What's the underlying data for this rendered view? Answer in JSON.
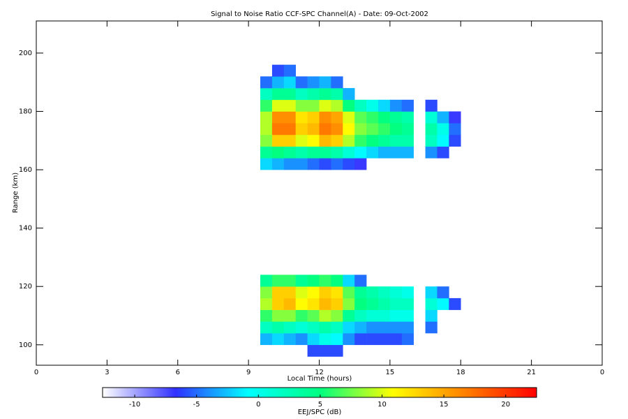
{
  "chart_data": {
    "type": "heatmap",
    "title": "Signal to Noise Ratio CCF-SPC Channel(A) - Date: 09-Oct-2002",
    "x_label": "Local Time (hours)",
    "y_label": "Range (km)",
    "colorbar_label": "EEJ/SPC (dB)",
    "xlim": [
      0,
      24
    ],
    "xticks": [
      0,
      3,
      6,
      9,
      12,
      15,
      18,
      21,
      {
        "value": 24,
        "label": "0"
      }
    ],
    "ylim": [
      93,
      211
    ],
    "yticks": [
      100,
      120,
      140,
      160,
      180,
      200
    ],
    "clim": [
      -12.6,
      22.5
    ],
    "cticks": [
      -10,
      -5,
      0,
      5,
      10,
      15,
      20
    ],
    "colormap": [
      "#ffffff",
      "#3030ff",
      "#00ffff",
      "#00ff80",
      "#ffff00",
      "#ff8000",
      "#ff0000"
    ],
    "x": [
      9.5,
      10,
      10.5,
      11,
      11.5,
      12,
      12.5,
      13,
      13.5,
      14,
      14.5,
      15,
      15.5,
      16,
      16.5,
      17,
      17.5,
      18
    ],
    "y": [
      96,
      100,
      104,
      108,
      112,
      116,
      120,
      124,
      128,
      132,
      136,
      140,
      144,
      148,
      152,
      156,
      160,
      164,
      168,
      172,
      176,
      180,
      184,
      188,
      192,
      196,
      200
    ],
    "z": [
      [
        null,
        null,
        null,
        null,
        -6,
        -6,
        -6,
        null,
        null,
        null,
        null,
        null,
        null,
        null,
        null,
        null,
        null
      ],
      [
        -3,
        -2,
        -3,
        -4,
        -2,
        0,
        -1,
        -4,
        -6,
        -6,
        -6,
        -6,
        -5,
        null,
        null,
        null,
        null
      ],
      [
        2,
        3,
        2,
        1,
        2,
        3,
        2,
        -2,
        -3,
        -4,
        -4,
        -4,
        -4,
        null,
        -5,
        null,
        null
      ],
      [
        6,
        8,
        8,
        6,
        7,
        9,
        8,
        4,
        2,
        1,
        1,
        0,
        0,
        null,
        -2,
        null,
        null
      ],
      [
        9,
        13,
        14,
        11,
        12,
        14,
        13,
        8,
        5,
        4,
        3,
        2,
        2,
        null,
        1,
        -1,
        -6
      ],
      [
        8,
        13,
        13,
        10,
        11,
        13,
        12,
        7,
        4,
        3,
        2,
        1,
        0,
        null,
        -2,
        -5,
        null
      ],
      [
        4,
        6,
        6,
        4,
        5,
        6,
        5,
        -2,
        -5,
        null,
        null,
        null,
        null,
        null,
        null,
        null,
        null
      ],
      [
        null,
        null,
        null,
        null,
        null,
        null,
        null,
        null,
        null,
        null,
        null,
        null,
        null,
        null,
        null,
        null,
        null
      ],
      [
        null,
        null,
        null,
        null,
        null,
        null,
        null,
        null,
        null,
        null,
        null,
        null,
        null,
        null,
        null,
        null,
        null
      ],
      [
        null,
        null,
        null,
        null,
        null,
        null,
        null,
        null,
        null,
        null,
        null,
        null,
        null,
        null,
        null,
        null,
        null
      ],
      [
        null,
        null,
        null,
        null,
        null,
        null,
        null,
        null,
        null,
        null,
        null,
        null,
        null,
        null,
        null,
        null,
        null
      ],
      [
        null,
        null,
        null,
        null,
        null,
        null,
        null,
        null,
        null,
        null,
        null,
        null,
        null,
        null,
        null,
        null,
        null
      ],
      [
        null,
        null,
        null,
        null,
        null,
        null,
        null,
        null,
        null,
        null,
        null,
        null,
        null,
        null,
        null,
        null,
        null
      ],
      [
        null,
        null,
        null,
        null,
        null,
        null,
        null,
        null,
        null,
        null,
        null,
        null,
        null,
        null,
        null,
        null,
        null
      ],
      [
        null,
        null,
        null,
        null,
        null,
        null,
        null,
        null,
        null,
        null,
        null,
        null,
        null,
        null,
        null,
        null,
        null
      ],
      [
        null,
        null,
        null,
        null,
        null,
        null,
        null,
        null,
        null,
        null,
        null,
        null,
        null,
        null,
        null,
        null,
        null
      ],
      [
        -2,
        -3,
        -4,
        -4,
        -5,
        -6,
        -5,
        -6,
        -7,
        null,
        null,
        null,
        null,
        null,
        null,
        null,
        null
      ],
      [
        4,
        5,
        4,
        3,
        4,
        4,
        3,
        1,
        -1,
        -2,
        -3,
        -3,
        -3,
        null,
        -4,
        -6,
        null
      ],
      [
        8,
        13,
        13,
        10,
        11,
        14,
        13,
        9,
        6,
        5,
        4,
        3,
        3,
        null,
        2,
        -1,
        -6
      ],
      [
        9,
        17,
        17,
        13,
        14,
        17,
        16,
        11,
        8,
        7,
        6,
        5,
        4,
        null,
        3,
        0,
        -5
      ],
      [
        9,
        16,
        16,
        12,
        13,
        16,
        15,
        10,
        7,
        6,
        5,
        4,
        3,
        null,
        1,
        -3,
        -7
      ],
      [
        6,
        10,
        10,
        8,
        8,
        10,
        9,
        5,
        2,
        0,
        -2,
        -4,
        -5,
        null,
        -6,
        null,
        null
      ],
      [
        2,
        4,
        4,
        2,
        3,
        4,
        3,
        -3,
        null,
        null,
        null,
        null,
        null,
        null,
        null,
        null,
        null
      ],
      [
        -5,
        -3,
        -2,
        -5,
        -4,
        -3,
        -5,
        null,
        null,
        null,
        null,
        null,
        null,
        null,
        null,
        null,
        null
      ],
      [
        null,
        -6,
        -5,
        null,
        null,
        null,
        null,
        null,
        null,
        null,
        null,
        null,
        null,
        null,
        null,
        null,
        null
      ],
      [
        null,
        null,
        null,
        null,
        null,
        null,
        null,
        null,
        null,
        null,
        null,
        null,
        null,
        null,
        null,
        null,
        null
      ]
    ]
  }
}
